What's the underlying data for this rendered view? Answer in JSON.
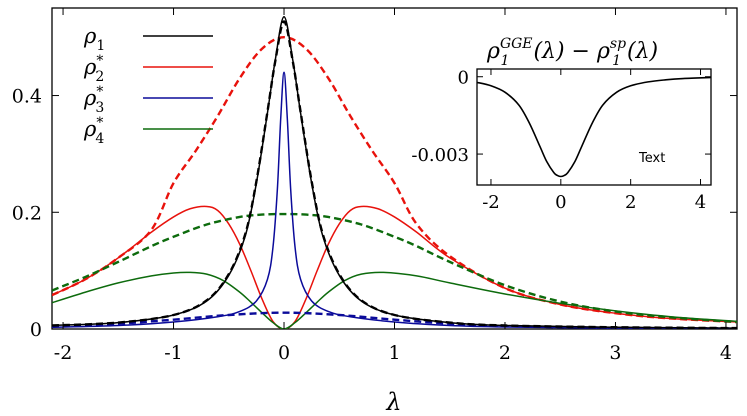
{
  "chart_data": [
    {
      "type": "line",
      "xlabel": "λ",
      "ylabel": "",
      "xlim": [
        -2.1,
        4.1
      ],
      "ylim": [
        0,
        0.55
      ],
      "x_ticks": [
        -2,
        -1,
        0,
        1,
        2,
        3,
        4
      ],
      "x_tick_labels": [
        "-2",
        "-1",
        "0",
        "1",
        "2",
        "3",
        "4"
      ],
      "y_ticks": [
        0,
        0.2,
        0.4
      ],
      "y_tick_labels": [
        "0",
        "0.2",
        "0.4"
      ],
      "grid": false,
      "legend_position": "top-left",
      "legend": [
        {
          "symbol": "ρ",
          "sub": "1",
          "sup": "",
          "color": "#000000"
        },
        {
          "symbol": "ρ",
          "sub": "2",
          "sup": "*",
          "color": "#e8120c"
        },
        {
          "symbol": "ρ",
          "sub": "3",
          "sup": "*",
          "color": "#0b0b9a"
        },
        {
          "symbol": "ρ",
          "sub": "4",
          "sup": "*",
          "color": "#0d6b0d"
        }
      ],
      "series": [
        {
          "key": "rho1",
          "color": "#000000",
          "style": "solid",
          "x": [
            -2.1,
            -1.5,
            -1.0,
            -0.7,
            -0.5,
            -0.35,
            -0.25,
            -0.15,
            -0.08,
            0,
            0.08,
            0.15,
            0.25,
            0.35,
            0.5,
            0.7,
            1.0,
            1.5,
            2.0,
            3.0,
            4.1
          ],
          "y": [
            0.006,
            0.011,
            0.024,
            0.048,
            0.092,
            0.16,
            0.25,
            0.37,
            0.46,
            0.535,
            0.46,
            0.37,
            0.25,
            0.16,
            0.092,
            0.048,
            0.024,
            0.011,
            0.006,
            0.003,
            0.0015
          ]
        },
        {
          "key": "rho1-dashed",
          "color": "#000000",
          "style": "dashed",
          "x": [
            -2.1,
            -1.5,
            -1.0,
            -0.7,
            -0.5,
            -0.35,
            -0.25,
            -0.15,
            -0.08,
            0,
            0.08,
            0.15,
            0.25,
            0.35,
            0.5,
            0.7,
            1.0,
            1.5,
            2.0,
            3.0,
            4.1
          ],
          "y": [
            0.006,
            0.011,
            0.024,
            0.049,
            0.094,
            0.163,
            0.253,
            0.372,
            0.458,
            0.527,
            0.458,
            0.372,
            0.253,
            0.163,
            0.094,
            0.049,
            0.024,
            0.011,
            0.006,
            0.003,
            0.0015
          ]
        },
        {
          "key": "rho2",
          "color": "#e8120c",
          "style": "solid",
          "x": [
            -2.1,
            -1.8,
            -1.5,
            -1.2,
            -1.0,
            -0.85,
            -0.7,
            -0.6,
            -0.5,
            -0.4,
            -0.3,
            -0.2,
            -0.1,
            0,
            0.1,
            0.2,
            0.3,
            0.4,
            0.5,
            0.6,
            0.7,
            0.85,
            1.0,
            1.2,
            1.5,
            2.0,
            2.5,
            3.0,
            3.5,
            4.1
          ],
          "y": [
            0.058,
            0.085,
            0.122,
            0.166,
            0.192,
            0.206,
            0.21,
            0.203,
            0.18,
            0.145,
            0.1,
            0.052,
            0.013,
            0.0,
            0.013,
            0.052,
            0.1,
            0.145,
            0.18,
            0.203,
            0.21,
            0.206,
            0.192,
            0.166,
            0.122,
            0.07,
            0.042,
            0.027,
            0.018,
            0.012
          ]
        },
        {
          "key": "rho2-dashed",
          "color": "#e8120c",
          "style": "dashed",
          "x": [
            -2.1,
            -1.8,
            -1.5,
            -1.2,
            -1.0,
            -0.8,
            -0.6,
            -0.4,
            -0.2,
            0,
            0.2,
            0.4,
            0.6,
            0.8,
            1.0,
            1.2,
            1.5,
            2.0,
            2.5,
            3.0,
            3.5,
            4.1
          ],
          "y": [
            0.058,
            0.085,
            0.122,
            0.17,
            0.25,
            0.305,
            0.365,
            0.43,
            0.48,
            0.5,
            0.48,
            0.43,
            0.365,
            0.305,
            0.25,
            0.18,
            0.125,
            0.07,
            0.042,
            0.027,
            0.018,
            0.012
          ]
        },
        {
          "key": "rho3",
          "color": "#0b0b9a",
          "style": "solid",
          "x": [
            -2.1,
            -1.5,
            -1.0,
            -0.6,
            -0.4,
            -0.25,
            -0.15,
            -0.1,
            -0.06,
            -0.03,
            0,
            0.03,
            0.06,
            0.1,
            0.15,
            0.25,
            0.4,
            0.6,
            1.0,
            1.5,
            2.0,
            3.0,
            4.1
          ],
          "y": [
            0.003,
            0.006,
            0.012,
            0.021,
            0.03,
            0.048,
            0.085,
            0.14,
            0.24,
            0.36,
            0.44,
            0.36,
            0.24,
            0.14,
            0.085,
            0.048,
            0.03,
            0.021,
            0.012,
            0.006,
            0.0035,
            0.0015,
            0.0008
          ]
        },
        {
          "key": "rho3-dashed",
          "color": "#0b0b9a",
          "style": "dashed",
          "x": [
            -2.1,
            -1.5,
            -1.0,
            -0.5,
            0,
            0.5,
            1.0,
            1.5,
            2.0,
            3.0,
            4.1
          ],
          "y": [
            0.004,
            0.009,
            0.016,
            0.024,
            0.028,
            0.024,
            0.016,
            0.009,
            0.005,
            0.002,
            0.001
          ]
        },
        {
          "key": "rho4",
          "color": "#0d6b0d",
          "style": "solid",
          "x": [
            -2.1,
            -1.8,
            -1.5,
            -1.2,
            -1.0,
            -0.85,
            -0.7,
            -0.55,
            -0.4,
            -0.3,
            -0.2,
            -0.1,
            0,
            0.1,
            0.2,
            0.3,
            0.4,
            0.55,
            0.7,
            0.9,
            1.2,
            1.5,
            2.0,
            2.5,
            3.0,
            3.5,
            4.1
          ],
          "y": [
            0.045,
            0.063,
            0.079,
            0.091,
            0.096,
            0.097,
            0.094,
            0.083,
            0.063,
            0.046,
            0.028,
            0.011,
            0.0,
            0.011,
            0.028,
            0.046,
            0.063,
            0.083,
            0.094,
            0.097,
            0.091,
            0.079,
            0.06,
            0.044,
            0.031,
            0.021,
            0.013
          ]
        },
        {
          "key": "rho4-dashed",
          "color": "#0d6b0d",
          "style": "dashed",
          "x": [
            -2.1,
            -1.8,
            -1.5,
            -1.2,
            -1.0,
            -0.7,
            -0.4,
            -0.2,
            0,
            0.2,
            0.4,
            0.7,
            1.0,
            1.2,
            1.5,
            2.0,
            2.5,
            3.0,
            3.5,
            4.1
          ],
          "y": [
            0.066,
            0.089,
            0.115,
            0.142,
            0.158,
            0.179,
            0.192,
            0.196,
            0.197,
            0.196,
            0.192,
            0.179,
            0.158,
            0.142,
            0.115,
            0.075,
            0.047,
            0.03,
            0.02,
            0.012
          ]
        }
      ]
    },
    {
      "type": "line",
      "title_base": "ρ",
      "title_sub_1": "1",
      "title_sup_1": "GGE",
      "title_mid": "(λ) − ρ",
      "title_sub_2": "1",
      "title_sup_2": "sp",
      "title_end": "(λ)",
      "xlim": [
        -2.4,
        4.3
      ],
      "ylim": [
        -0.0042,
        0.0003
      ],
      "x_ticks": [
        -2,
        0,
        2,
        4
      ],
      "x_tick_labels": [
        "-2",
        "0",
        "2",
        "4"
      ],
      "y_ticks": [
        0,
        -0.003
      ],
      "y_tick_labels": [
        "0",
        "-0.003"
      ],
      "annotation": "Text",
      "series": [
        {
          "key": "diff",
          "color": "#000000",
          "style": "solid",
          "x": [
            -2.4,
            -2.0,
            -1.6,
            -1.2,
            -0.9,
            -0.6,
            -0.4,
            -0.2,
            -0.1,
            0,
            0.1,
            0.2,
            0.4,
            0.6,
            0.9,
            1.2,
            1.6,
            2.0,
            2.5,
            3.0,
            3.5,
            4.3
          ],
          "y": [
            -0.00022,
            -0.00035,
            -0.0006,
            -0.0011,
            -0.0018,
            -0.0027,
            -0.0033,
            -0.00372,
            -0.00383,
            -0.00387,
            -0.00383,
            -0.00372,
            -0.0033,
            -0.0027,
            -0.0018,
            -0.0011,
            -0.0006,
            -0.00035,
            -0.0002,
            -0.00012,
            -7e-05,
            -3e-05
          ]
        }
      ]
    }
  ]
}
